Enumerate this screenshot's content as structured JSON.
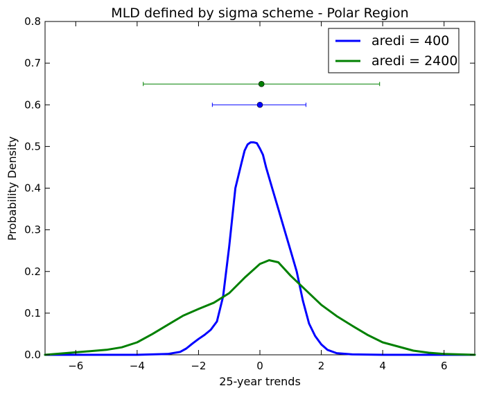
{
  "chart_data": {
    "type": "line",
    "title": "MLD defined by sigma scheme  - Polar Region",
    "xlabel": "25-year trends",
    "ylabel": "Probability Density",
    "xlim": [
      -7,
      7
    ],
    "ylim": [
      0,
      0.8
    ],
    "xticks": [
      -6,
      -4,
      -2,
      0,
      2,
      4,
      6
    ],
    "xtick_labels": [
      "−6",
      "−4",
      "−2",
      "0",
      "2",
      "4",
      "6"
    ],
    "yticks": [
      0.0,
      0.1,
      0.2,
      0.3,
      0.4,
      0.5,
      0.6,
      0.7,
      0.8
    ],
    "ytick_labels": [
      "0.0",
      "0.1",
      "0.2",
      "0.3",
      "0.4",
      "0.5",
      "0.6",
      "0.7",
      "0.8"
    ],
    "grid": false,
    "legend_position": "top-right",
    "series": [
      {
        "name": "aredi = 400",
        "color": "#0000ff",
        "x": [
          -7,
          -4,
          -3,
          -2.6,
          -2.4,
          -2.2,
          -2.0,
          -1.8,
          -1.6,
          -1.4,
          -1.2,
          -1.0,
          -0.8,
          -0.6,
          -0.5,
          -0.4,
          -0.3,
          -0.2,
          -0.1,
          0.0,
          0.1,
          0.2,
          0.4,
          0.6,
          0.8,
          1.0,
          1.2,
          1.4,
          1.6,
          1.8,
          2.0,
          2.2,
          2.5,
          3.0,
          4.0,
          7.0
        ],
        "y": [
          0.0,
          0.0,
          0.002,
          0.007,
          0.015,
          0.027,
          0.038,
          0.048,
          0.06,
          0.08,
          0.14,
          0.26,
          0.4,
          0.46,
          0.49,
          0.505,
          0.51,
          0.51,
          0.508,
          0.495,
          0.48,
          0.45,
          0.4,
          0.35,
          0.3,
          0.25,
          0.2,
          0.13,
          0.075,
          0.045,
          0.025,
          0.012,
          0.004,
          0.001,
          0.0,
          0.0
        ]
      },
      {
        "name": "aredi = 2400",
        "color": "#008000",
        "x": [
          -7,
          -6,
          -5,
          -4.5,
          -4,
          -3.5,
          -3,
          -2.5,
          -2,
          -1.5,
          -1,
          -0.5,
          0,
          0.3,
          0.6,
          1,
          1.5,
          2,
          2.5,
          3,
          3.5,
          4,
          4.5,
          5,
          5.5,
          6,
          6.5,
          7
        ],
        "y": [
          0.0,
          0.006,
          0.012,
          0.018,
          0.03,
          0.05,
          0.072,
          0.094,
          0.11,
          0.125,
          0.148,
          0.185,
          0.218,
          0.227,
          0.222,
          0.19,
          0.155,
          0.12,
          0.093,
          0.07,
          0.048,
          0.03,
          0.02,
          0.01,
          0.005,
          0.002,
          0.001,
          0.0
        ]
      }
    ],
    "error_bars": [
      {
        "series": "aredi = 400",
        "color": "#0000ff",
        "center": 0.0,
        "y": 0.6,
        "xmin": -1.55,
        "xmax": 1.5
      },
      {
        "series": "aredi = 2400",
        "color": "#008000",
        "center": 0.05,
        "y": 0.65,
        "xmin": -3.8,
        "xmax": 3.9
      }
    ]
  }
}
